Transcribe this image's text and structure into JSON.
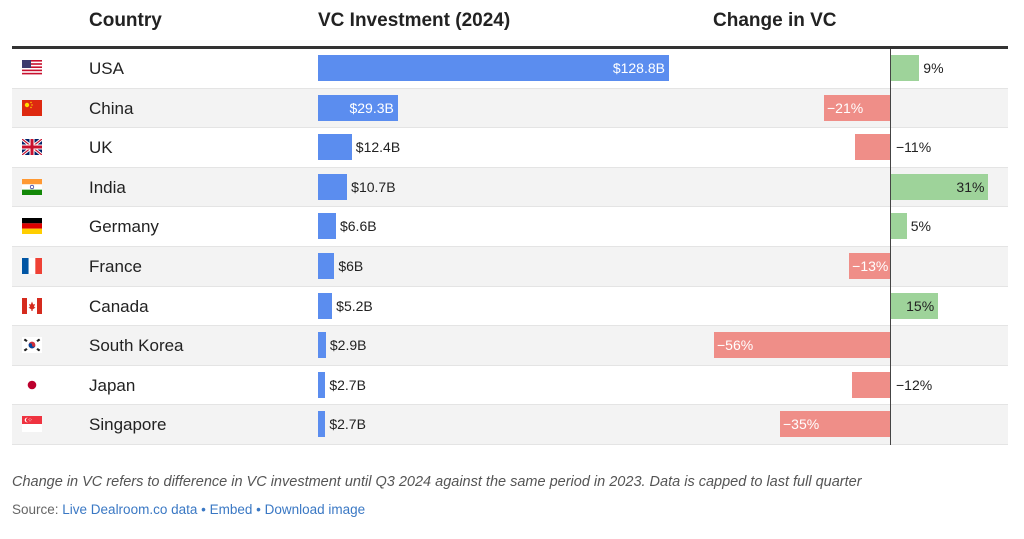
{
  "header": {
    "country": "Country",
    "investment": "VC Investment (2024)",
    "change": "Change in VC"
  },
  "chart_data": {
    "type": "bar",
    "categories": [
      "USA",
      "China",
      "UK",
      "India",
      "Germany",
      "France",
      "Canada",
      "South Korea",
      "Japan",
      "Singapore"
    ],
    "flags": [
      "us-flag-icon",
      "china-flag-icon",
      "uk-flag-icon",
      "india-flag-icon",
      "germany-flag-icon",
      "france-flag-icon",
      "canada-flag-icon",
      "south-korea-flag-icon",
      "japan-flag-icon",
      "singapore-flag-icon"
    ],
    "series": [
      {
        "name": "VC Investment (2024)",
        "values": [
          128.8,
          29.3,
          12.4,
          10.7,
          6.6,
          6,
          5.2,
          2.9,
          2.7,
          2.7
        ],
        "labels": [
          "$128.8B",
          "$29.3B",
          "$12.4B",
          "$10.7B",
          "$6.6B",
          "$6B",
          "$5.2B",
          "$2.9B",
          "$2.7B",
          "$2.7B"
        ],
        "color": "#5b8def"
      },
      {
        "name": "Change in VC",
        "values": [
          9,
          -21,
          -11,
          31,
          5,
          -13,
          15,
          -56,
          -12,
          -35
        ],
        "labels": [
          "9%",
          "−21%",
          "−11%",
          "31%",
          "5%",
          "−13%",
          "15%",
          "−56%",
          "−12%",
          "−35%"
        ],
        "positive_color": "#9ed39a",
        "negative_color": "#ef8e88"
      }
    ]
  },
  "footer": {
    "note": "Change in VC refers to difference in VC investment until Q3 2024 against the same period in 2023. Data is capped to last full quarter",
    "source_prefix": "Source: ",
    "source_link": "Live Dealroom.co data",
    "sep1": " • ",
    "embed": "Embed",
    "sep2": " • ",
    "download": "Download image"
  }
}
